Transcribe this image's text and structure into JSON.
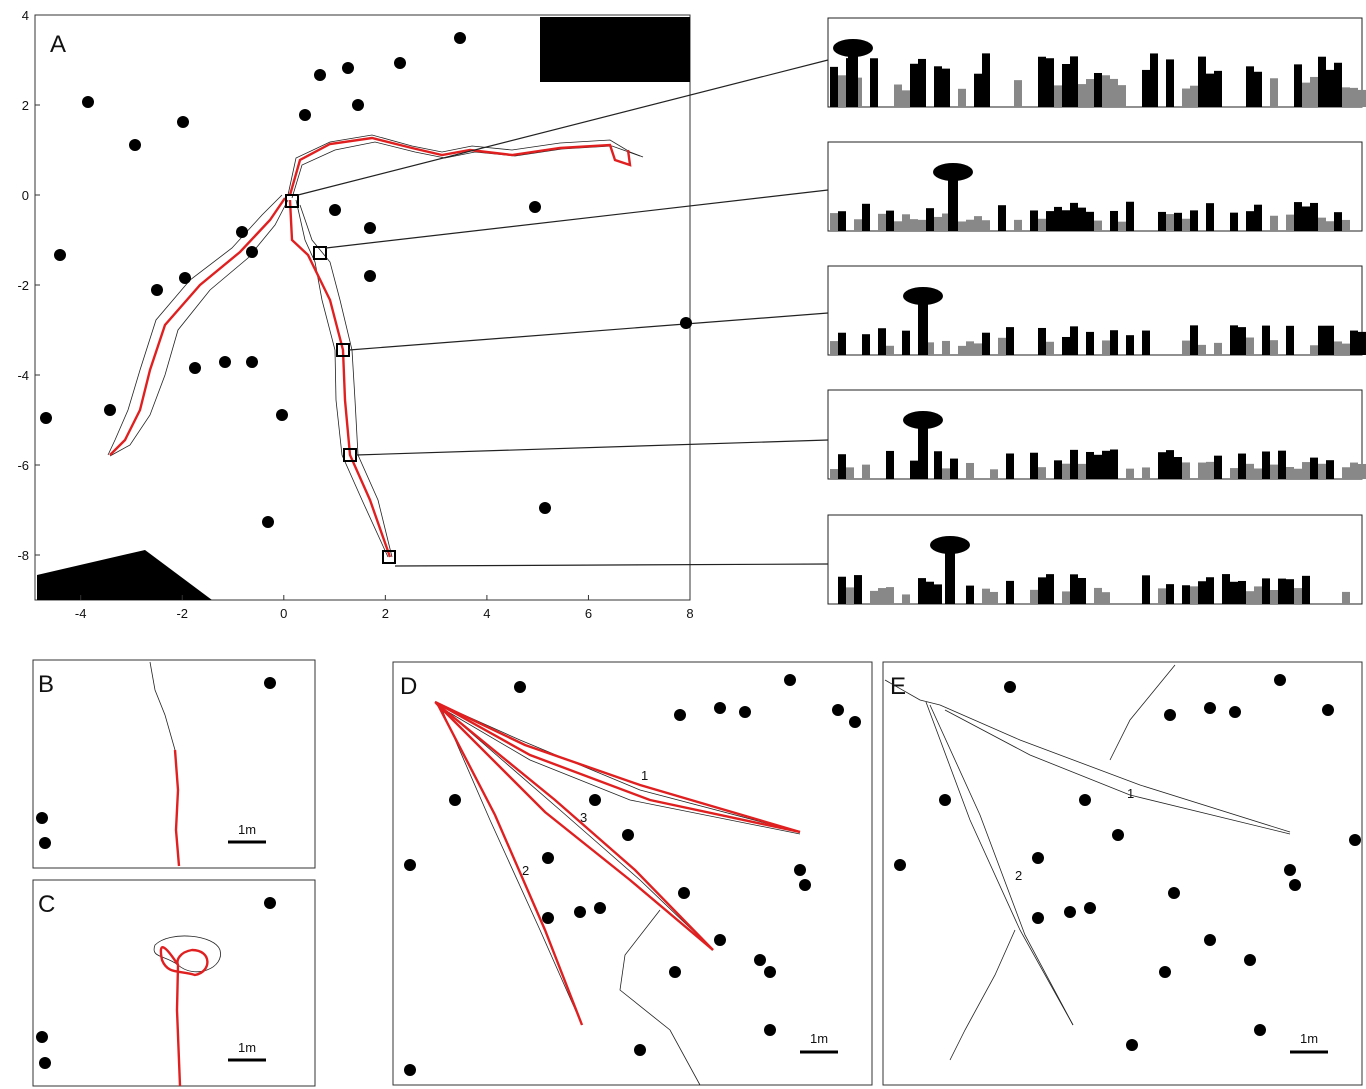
{
  "panels": {
    "a": {
      "label": "A",
      "xlim": [
        -4.9,
        8
      ],
      "ylim": [
        -9,
        4
      ],
      "xticks": [
        -4,
        -2,
        0,
        2,
        4,
        6,
        8
      ],
      "yticks": [
        4,
        2,
        0,
        -2,
        -4,
        -6,
        -8
      ]
    },
    "b": {
      "label": "B",
      "scale_label": "1m"
    },
    "c": {
      "label": "C",
      "scale_label": "1m"
    },
    "d": {
      "label": "D",
      "scale_label": "1m",
      "routes": [
        "1",
        "2",
        "3"
      ]
    },
    "e": {
      "label": "E",
      "scale_label": "1m",
      "routes": [
        "1",
        "2"
      ]
    }
  }
}
